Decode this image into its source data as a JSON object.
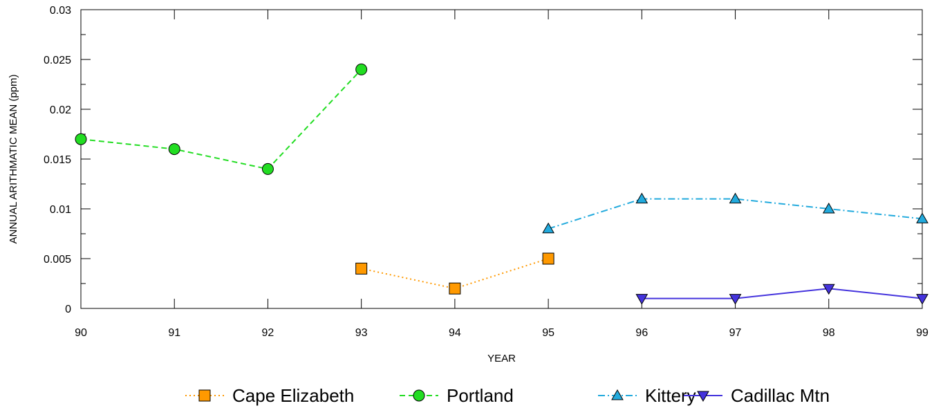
{
  "chart_data": {
    "type": "line",
    "title": "",
    "xlabel": "YEAR",
    "ylabel": "ANNUAL ARITHMATIC MEAN (ppm)",
    "xlim": [
      90,
      99
    ],
    "ylim": [
      0,
      0.03
    ],
    "x_ticks": [
      "90",
      "91",
      "92",
      "93",
      "94",
      "95",
      "96",
      "97",
      "98",
      "99"
    ],
    "y_ticks": [
      "0",
      "0.005",
      "0.01",
      "0.015",
      "0.02",
      "0.025",
      "0.03"
    ],
    "grid": false,
    "legend_position": "bottom",
    "series": [
      {
        "name": "Cape Elizabeth",
        "color": "#ff9900",
        "marker": "square",
        "line_style": "dotted",
        "x": [
          93,
          94,
          95
        ],
        "y": [
          0.004,
          0.002,
          0.005
        ]
      },
      {
        "name": "Portland",
        "color": "#22dd22",
        "marker": "circle",
        "line_style": "dashed",
        "x": [
          90,
          91,
          92,
          93
        ],
        "y": [
          0.017,
          0.016,
          0.014,
          0.024
        ]
      },
      {
        "name": "Kittery",
        "color": "#22aadd",
        "marker": "triangle-up",
        "line_style": "dash-dot",
        "x": [
          95,
          96,
          97,
          98,
          99
        ],
        "y": [
          0.008,
          0.011,
          0.011,
          0.01,
          0.009
        ]
      },
      {
        "name": "Cadillac Mtn",
        "color": "#4433dd",
        "marker": "triangle-down",
        "line_style": "solid",
        "x": [
          96,
          97,
          98,
          99
        ],
        "y": [
          0.001,
          0.001,
          0.002,
          0.001
        ]
      }
    ]
  }
}
